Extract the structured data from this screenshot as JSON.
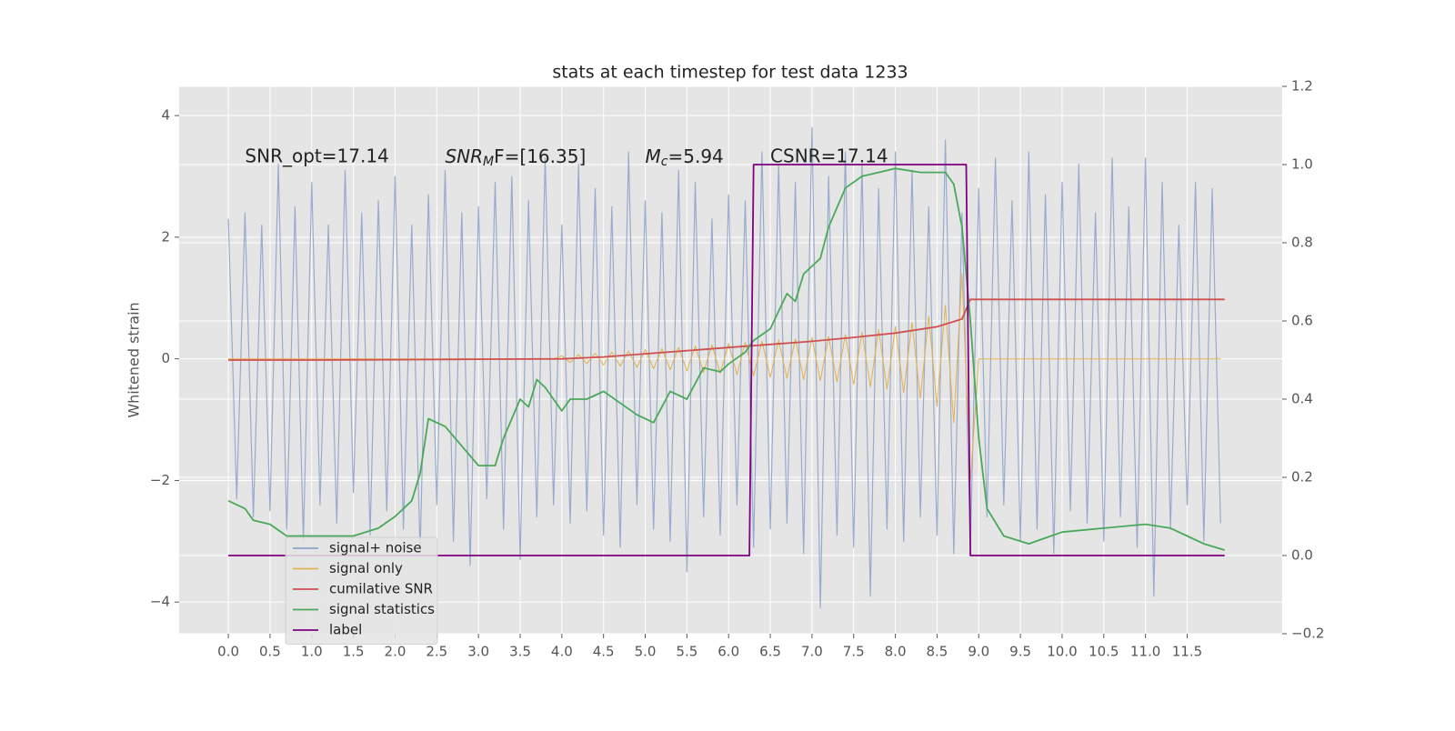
{
  "chart_data": {
    "type": "line",
    "title": "stats at each timestep for test data 1233",
    "ylabel": "Whitened strain",
    "annotations": [
      {
        "text": "SNR_opt=17.14",
        "x": 0.2
      },
      {
        "main": "SNR",
        "sub": "M",
        "rest": "F=[16.35]",
        "x": 2.6
      },
      {
        "main": "M",
        "sub": "c",
        "rest": "=5.94",
        "x": 5.0
      },
      {
        "text": "CSNR=17.14",
        "x": 6.5
      }
    ],
    "x": [
      0,
      0.1,
      0.2,
      0.3,
      0.4,
      0.5,
      0.6,
      0.7,
      0.8,
      0.9,
      1,
      1.1,
      1.2,
      1.3,
      1.4,
      1.5,
      1.6,
      1.7,
      1.8,
      1.9,
      2,
      2.1,
      2.2,
      2.3,
      2.4,
      2.5,
      2.6,
      2.7,
      2.8,
      2.9,
      3,
      3.1,
      3.2,
      3.3,
      3.4,
      3.5,
      3.6,
      3.7,
      3.8,
      3.9,
      4,
      4.1,
      4.2,
      4.3,
      4.4,
      4.5,
      4.6,
      4.7,
      4.8,
      4.9,
      5,
      5.1,
      5.2,
      5.3,
      5.4,
      5.5,
      5.6,
      5.7,
      5.8,
      5.9,
      6,
      6.1,
      6.2,
      6.3,
      6.4,
      6.5,
      6.6,
      6.7,
      6.8,
      6.9,
      7,
      7.1,
      7.2,
      7.3,
      7.4,
      7.5,
      7.6,
      7.7,
      7.8,
      7.9,
      8,
      8.1,
      8.2,
      8.3,
      8.4,
      8.5,
      8.6,
      8.7,
      8.8,
      8.9,
      9,
      9.1,
      9.2,
      9.3,
      9.4,
      9.5,
      9.6,
      9.7,
      9.8,
      9.9,
      10,
      10.1,
      10.2,
      10.3,
      10.4,
      10.5,
      10.6,
      10.7,
      10.8,
      10.9,
      11,
      11.1,
      11.2,
      11.3,
      11.4,
      11.5,
      11.6,
      11.7,
      11.8,
      11.9
    ],
    "series": [
      {
        "name": "signal+ noise",
        "color": "#8fa4cb",
        "values": [
          2.3,
          -2.3,
          2.4,
          -2.6,
          2.2,
          -2.5,
          3.2,
          -2.8,
          2.5,
          -3.0,
          2.9,
          -2.4,
          2.2,
          -2.7,
          3.1,
          -2.2,
          2.4,
          -2.9,
          2.6,
          -2.5,
          3.0,
          -2.8,
          2.2,
          -3.2,
          2.7,
          -2.4,
          3.1,
          -3.0,
          2.4,
          -3.4,
          2.5,
          -2.3,
          2.9,
          -2.8,
          3.0,
          -3.3,
          2.6,
          -2.6,
          3.3,
          -2.4,
          2.2,
          -2.7,
          3.2,
          -2.5,
          2.8,
          -2.9,
          2.5,
          -3.1,
          3.4,
          -2.4,
          2.6,
          -2.8,
          2.4,
          -3.0,
          3.1,
          -3.5,
          2.9,
          -2.6,
          2.3,
          -2.9,
          2.7,
          -2.4,
          2.6,
          -3.1,
          3.4,
          -2.8,
          3.2,
          -2.7,
          2.9,
          -3.2,
          3.8,
          -4.1,
          3.0,
          -2.9,
          3.4,
          -3.1,
          3.2,
          -3.9,
          2.8,
          -2.8,
          3.4,
          -3.0,
          3.1,
          -2.6,
          2.5,
          -2.9,
          3.6,
          -3.2,
          2.4,
          -3.1,
          2.8,
          -2.6,
          3.3,
          -2.4,
          2.6,
          -3.0,
          3.4,
          -2.8,
          2.7,
          -3.2,
          2.9,
          -2.5,
          3.2,
          -2.7,
          2.4,
          -3.0,
          3.3,
          -2.6,
          2.5,
          -3.1,
          3.3,
          -3.9,
          2.9,
          -2.8,
          2.2,
          -2.4,
          2.9,
          -3.0,
          2.8,
          -2.7
        ]
      },
      {
        "name": "signal only",
        "color": "#e3b04f",
        "values": [
          0,
          0,
          0,
          0,
          0,
          0,
          0,
          0,
          0,
          0,
          0,
          0,
          0,
          0,
          0,
          0,
          0,
          0,
          0,
          0,
          0,
          0,
          0,
          0,
          0,
          0,
          0,
          0,
          0,
          0,
          0,
          0,
          0,
          0,
          0,
          0,
          0,
          0,
          0,
          0,
          0.05,
          -0.06,
          0.07,
          -0.08,
          0.09,
          -0.1,
          0.11,
          -0.12,
          0.13,
          -0.14,
          0.15,
          -0.16,
          0.17,
          -0.18,
          0.19,
          -0.2,
          0.21,
          -0.22,
          0.23,
          -0.24,
          0.25,
          -0.26,
          0.27,
          -0.28,
          0.29,
          -0.3,
          0.31,
          -0.32,
          0.33,
          -0.34,
          0.35,
          -0.36,
          0.37,
          -0.38,
          0.4,
          -0.42,
          0.44,
          -0.46,
          0.48,
          -0.5,
          0.53,
          -0.56,
          0.6,
          -0.65,
          0.7,
          -0.78,
          0.88,
          -1.05,
          1.4,
          -2.0,
          0,
          0,
          0,
          0,
          0,
          0,
          0,
          0,
          0,
          0,
          0,
          0,
          0,
          0,
          0,
          0,
          0,
          0,
          0,
          0,
          0,
          0,
          0,
          0,
          0,
          0,
          0,
          0,
          0,
          0
        ]
      },
      {
        "name": "cumilative SNR",
        "color": "#d0504f",
        "axis": "y2",
        "x": [
          0,
          1,
          2,
          3,
          4,
          4.5,
          5,
          5.5,
          6,
          6.5,
          7,
          7.5,
          8,
          8.5,
          8.8,
          8.9,
          11.95
        ],
        "values": [
          0.5,
          0.5,
          0.501,
          0.502,
          0.503,
          0.508,
          0.516,
          0.524,
          0.532,
          0.54,
          0.548,
          0.558,
          0.569,
          0.585,
          0.605,
          0.655,
          0.655
        ]
      },
      {
        "name": "signal statistics",
        "color": "#4aa85a",
        "axis": "y2",
        "x": [
          0,
          0.2,
          0.3,
          0.5,
          0.7,
          0.9,
          1.2,
          1.5,
          1.8,
          2,
          2.2,
          2.3,
          2.4,
          2.6,
          2.8,
          3,
          3.2,
          3.3,
          3.5,
          3.6,
          3.7,
          3.8,
          4,
          4.1,
          4.3,
          4.5,
          4.7,
          4.9,
          5.1,
          5.3,
          5.5,
          5.7,
          5.9,
          6,
          6.2,
          6.3,
          6.5,
          6.7,
          6.8,
          6.9,
          7.1,
          7.2,
          7.3,
          7.4,
          7.6,
          7.8,
          8,
          8.3,
          8.6,
          8.7,
          8.8,
          8.9,
          9,
          9.1,
          9.3,
          9.6,
          10,
          10.5,
          11,
          11.3,
          11.5,
          11.7,
          11.95
        ],
        "values": [
          0.14,
          0.12,
          0.09,
          0.08,
          0.05,
          0.05,
          0.05,
          0.05,
          0.07,
          0.1,
          0.14,
          0.21,
          0.35,
          0.33,
          0.28,
          0.23,
          0.23,
          0.3,
          0.4,
          0.38,
          0.45,
          0.43,
          0.37,
          0.4,
          0.4,
          0.42,
          0.39,
          0.36,
          0.34,
          0.42,
          0.4,
          0.48,
          0.47,
          0.49,
          0.52,
          0.55,
          0.58,
          0.67,
          0.65,
          0.72,
          0.76,
          0.84,
          0.89,
          0.94,
          0.97,
          0.98,
          0.99,
          0.98,
          0.98,
          0.95,
          0.84,
          0.6,
          0.3,
          0.12,
          0.05,
          0.03,
          0.06,
          0.07,
          0.08,
          0.07,
          0.05,
          0.03,
          0.014
        ]
      },
      {
        "name": "label",
        "color": "#800080",
        "axis": "y2",
        "x": [
          0,
          6.25,
          6.3,
          8.85,
          8.9,
          11.95
        ],
        "values": [
          0,
          0,
          1,
          1,
          0,
          0
        ]
      }
    ],
    "xlim": [
      -0.59,
      12.64
    ],
    "xticks": [
      {
        "value": 0,
        "label": "0.0"
      },
      {
        "value": 0.5,
        "label": "0.5"
      },
      {
        "value": 1,
        "label": "1.0"
      },
      {
        "value": 1.5,
        "label": "1.5"
      },
      {
        "value": 2,
        "label": "2.0"
      },
      {
        "value": 2.5,
        "label": "2.5"
      },
      {
        "value": 3,
        "label": "3.0"
      },
      {
        "value": 3.5,
        "label": "3.5"
      },
      {
        "value": 4,
        "label": "4.0"
      },
      {
        "value": 4.5,
        "label": "4.5"
      },
      {
        "value": 5,
        "label": "5.0"
      },
      {
        "value": 5.5,
        "label": "5.5"
      },
      {
        "value": 6,
        "label": "6.0"
      },
      {
        "value": 6.5,
        "label": "6.5"
      },
      {
        "value": 7,
        "label": "7.0"
      },
      {
        "value": 7.5,
        "label": "7.5"
      },
      {
        "value": 8,
        "label": "8.0"
      },
      {
        "value": 8.5,
        "label": "8.5"
      },
      {
        "value": 9,
        "label": "9.0"
      },
      {
        "value": 9.5,
        "label": "9.5"
      },
      {
        "value": 10,
        "label": "10.0"
      },
      {
        "value": 10.5,
        "label": "10.5"
      },
      {
        "value": 11,
        "label": "11.0"
      },
      {
        "value": 11.5,
        "label": "11.5"
      }
    ],
    "ylim": [
      -4.52,
      4.48
    ],
    "yticks": [
      {
        "value": -4,
        "label": "−4"
      },
      {
        "value": -2,
        "label": "−2"
      },
      0,
      2,
      4
    ],
    "y2lim": [
      -0.2,
      1.2
    ],
    "y2ticks": [
      {
        "value": -0.2,
        "label": "−0.2"
      },
      {
        "value": 0,
        "label": "0.0"
      },
      {
        "value": 0.2,
        "label": "0.2"
      },
      {
        "value": 0.4,
        "label": "0.4"
      },
      {
        "value": 0.6,
        "label": "0.6"
      },
      {
        "value": 0.8,
        "label": "0.8"
      },
      {
        "value": 1,
        "label": "1.0"
      },
      {
        "value": 1.2,
        "label": "1.2"
      }
    ],
    "grid": true,
    "legend": "lower left"
  }
}
